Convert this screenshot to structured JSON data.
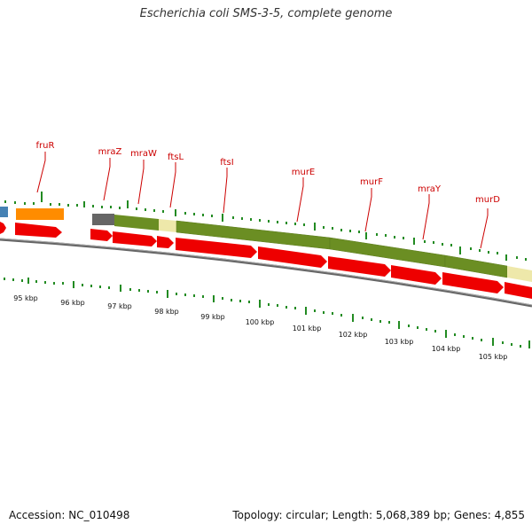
{
  "title": "Escherichia coli SMS-3-5, complete genome",
  "footer": {
    "accession": "Accession: NC_010498",
    "stats": "Topology: circular; Length: 5,068,389 bp; Genes: 4,855"
  },
  "colors": {
    "background": "#ffffff",
    "gene_label": "#cc0000",
    "label_line": "#cc0000",
    "cds_arrow": "#ee0000",
    "backbone": "#888888",
    "tick": "#228b22",
    "feature_olive": "#6b8e23",
    "feature_pale_yellow": "#eee8aa",
    "feature_orange": "#ff8c00",
    "feature_gray": "#666666",
    "feature_blue": "#4682b4"
  },
  "gene_labels": [
    {
      "name": "fruR"
    },
    {
      "name": "mraZ"
    },
    {
      "name": "mraW"
    },
    {
      "name": "ftsL"
    },
    {
      "name": "ftsI"
    },
    {
      "name": "murE"
    },
    {
      "name": "murF"
    },
    {
      "name": "mraY"
    },
    {
      "name": "murD"
    }
  ],
  "kbp_labels": [
    "95 kbp",
    "96 kbp",
    "97 kbp",
    "98 kbp",
    "99 kbp",
    "100 kbp",
    "101 kbp",
    "102 kbp",
    "103 kbp",
    "104 kbp",
    "105 kbp"
  ]
}
